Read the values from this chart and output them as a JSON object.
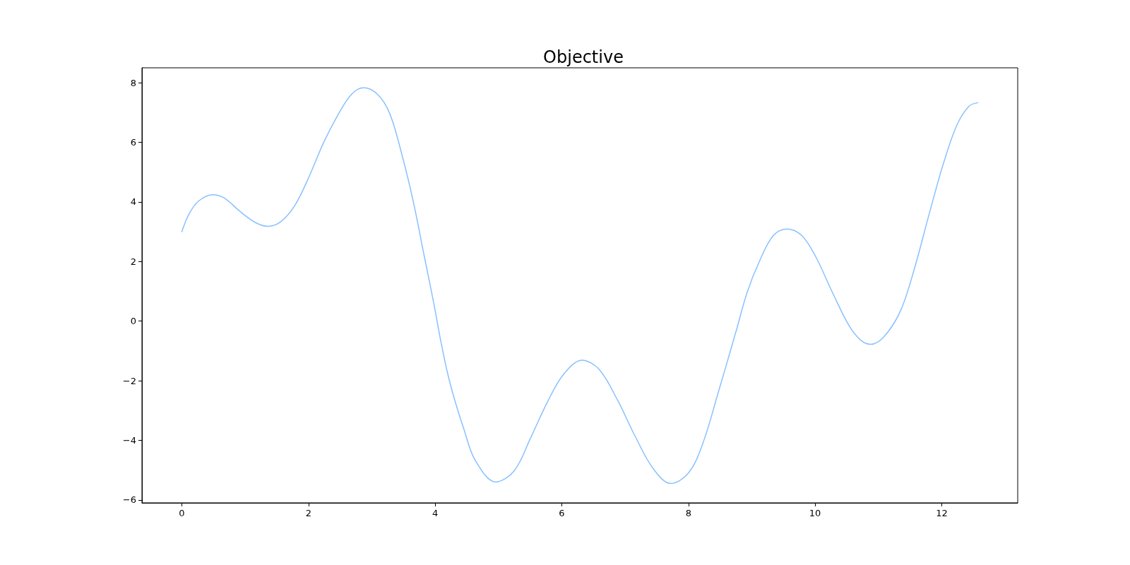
{
  "chart_data": {
    "type": "line",
    "title": "Objective",
    "x": [
      0,
      0.11,
      0.26,
      0.49,
      0.67,
      0.93,
      1.16,
      1.36,
      1.57,
      1.79,
      2.01,
      2.23,
      2.46,
      2.68,
      2.87,
      3.09,
      3.28,
      3.46,
      3.65,
      3.83,
      3.98,
      4.09,
      4.2,
      4.32,
      4.45,
      4.63,
      4.96,
      5.25,
      5.51,
      5.77,
      6.03,
      6.32,
      6.59,
      6.88,
      7.15,
      7.44,
      7.72,
      8.0,
      8.22,
      8.48,
      8.75,
      8.93,
      9.12,
      9.34,
      9.55,
      9.79,
      10.01,
      10.27,
      10.53,
      10.72,
      10.88,
      11.09,
      11.35,
      11.57,
      11.8,
      12.02,
      12.24,
      12.43,
      12.57
    ],
    "series": [
      {
        "color": "#88c0ff",
        "values": [
          3.0,
          3.58,
          4.02,
          4.24,
          4.13,
          3.66,
          3.31,
          3.18,
          3.35,
          3.9,
          4.85,
          5.95,
          6.9,
          7.61,
          7.83,
          7.61,
          6.98,
          5.71,
          4.06,
          2.16,
          0.58,
          -0.68,
          -1.78,
          -2.73,
          -3.6,
          -4.66,
          -5.4,
          -5.02,
          -3.91,
          -2.73,
          -1.78,
          -1.31,
          -1.62,
          -2.65,
          -3.83,
          -4.94,
          -5.45,
          -5.1,
          -4.15,
          -2.33,
          -0.36,
          0.98,
          2.0,
          2.87,
          3.09,
          2.87,
          2.16,
          0.98,
          -0.13,
          -0.64,
          -0.78,
          -0.52,
          0.35,
          1.77,
          3.58,
          5.24,
          6.58,
          7.21,
          7.33
        ]
      }
    ],
    "xlim": [
      -0.63,
      13.2
    ],
    "ylim": [
      -6.1,
      8.5
    ],
    "xticks": [
      0,
      2,
      4,
      6,
      8,
      10,
      12
    ],
    "yticks": [
      {
        "value": -6,
        "label": "−6"
      },
      {
        "value": -4,
        "label": "−4"
      },
      {
        "value": -2,
        "label": "−2"
      },
      0,
      2,
      4,
      6,
      8
    ],
    "marker": "none",
    "line_style": "solid"
  }
}
